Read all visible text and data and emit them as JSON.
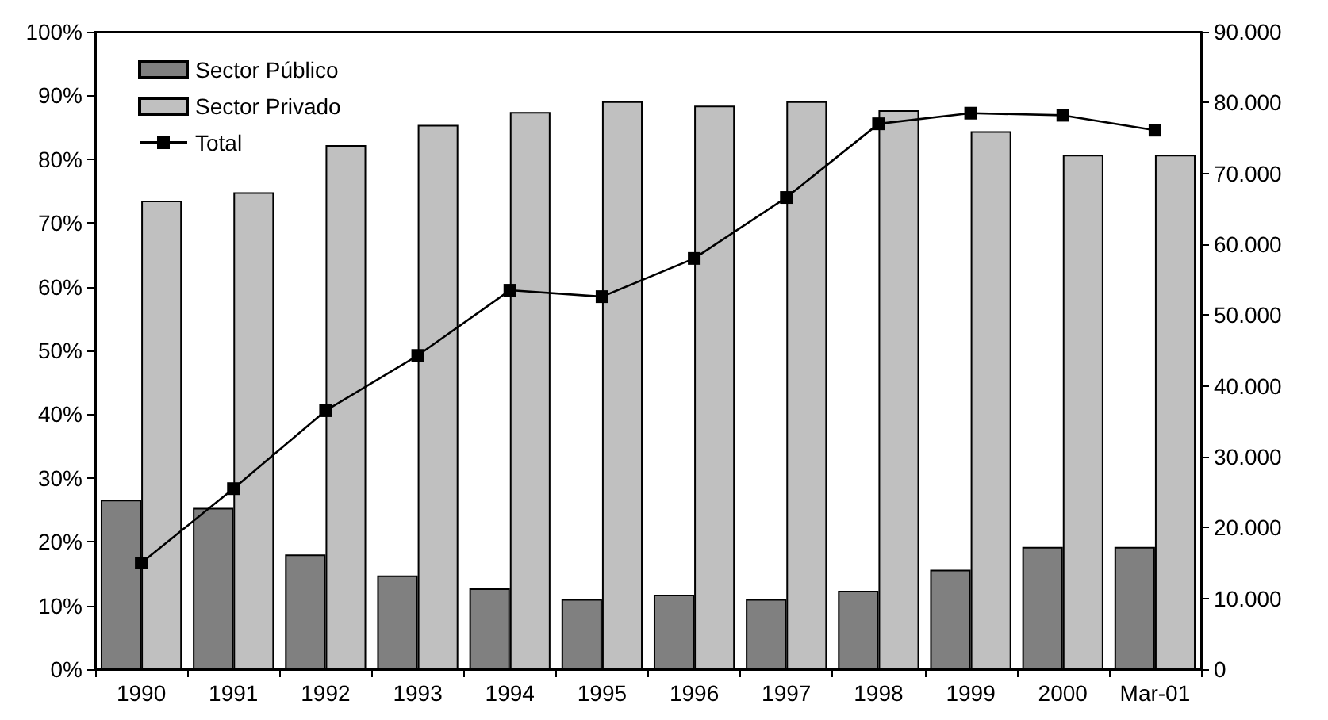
{
  "chart_data": {
    "type": "bar",
    "categories": [
      "1990",
      "1991",
      "1992",
      "1993",
      "1994",
      "1995",
      "1996",
      "1997",
      "1998",
      "1999",
      "2000",
      "Mar-01"
    ],
    "series": [
      {
        "name": "Sector Público",
        "color": "#808080",
        "values": [
          26.6,
          25.3,
          18.0,
          14.7,
          12.7,
          11.0,
          11.7,
          11.0,
          12.3,
          15.6,
          19.2,
          19.2
        ]
      },
      {
        "name": "Sector Privado",
        "color": "#c0c0c0",
        "values": [
          73.5,
          74.8,
          82.2,
          85.4,
          87.4,
          89.1,
          88.4,
          89.1,
          87.7,
          84.4,
          80.7,
          80.7
        ]
      },
      {
        "name": "Total",
        "type": "line",
        "axis": "y2",
        "color": "#000000",
        "marker": "square",
        "values": [
          15000,
          25500,
          36500,
          44300,
          53500,
          52600,
          58000,
          66600,
          77000,
          78500,
          78200,
          76100
        ]
      }
    ],
    "ylim": [
      0,
      100
    ],
    "yticks": [
      {
        "value": 0,
        "label": "0%"
      },
      {
        "value": 10,
        "label": "10%"
      },
      {
        "value": 20,
        "label": "20%"
      },
      {
        "value": 30,
        "label": "30%"
      },
      {
        "value": 40,
        "label": "40%"
      },
      {
        "value": 50,
        "label": "50%"
      },
      {
        "value": 60,
        "label": "60%"
      },
      {
        "value": 70,
        "label": "70%"
      },
      {
        "value": 80,
        "label": "80%"
      },
      {
        "value": 90,
        "label": "90%"
      },
      {
        "value": 100,
        "label": "100%"
      }
    ],
    "y2lim": [
      0,
      90000
    ],
    "y2ticks": [
      0,
      {
        "value": 10000,
        "label": "10.000"
      },
      {
        "value": 20000,
        "label": "20.000"
      },
      {
        "value": 30000,
        "label": "30.000"
      },
      {
        "value": 40000,
        "label": "40.000"
      },
      {
        "value": 50000,
        "label": "50.000"
      },
      {
        "value": 60000,
        "label": "60.000"
      },
      {
        "value": 70000,
        "label": "70.000"
      },
      {
        "value": 80000,
        "label": "80.000"
      },
      {
        "value": 90000,
        "label": "90.000"
      }
    ],
    "grid": false,
    "legend": "top left"
  }
}
